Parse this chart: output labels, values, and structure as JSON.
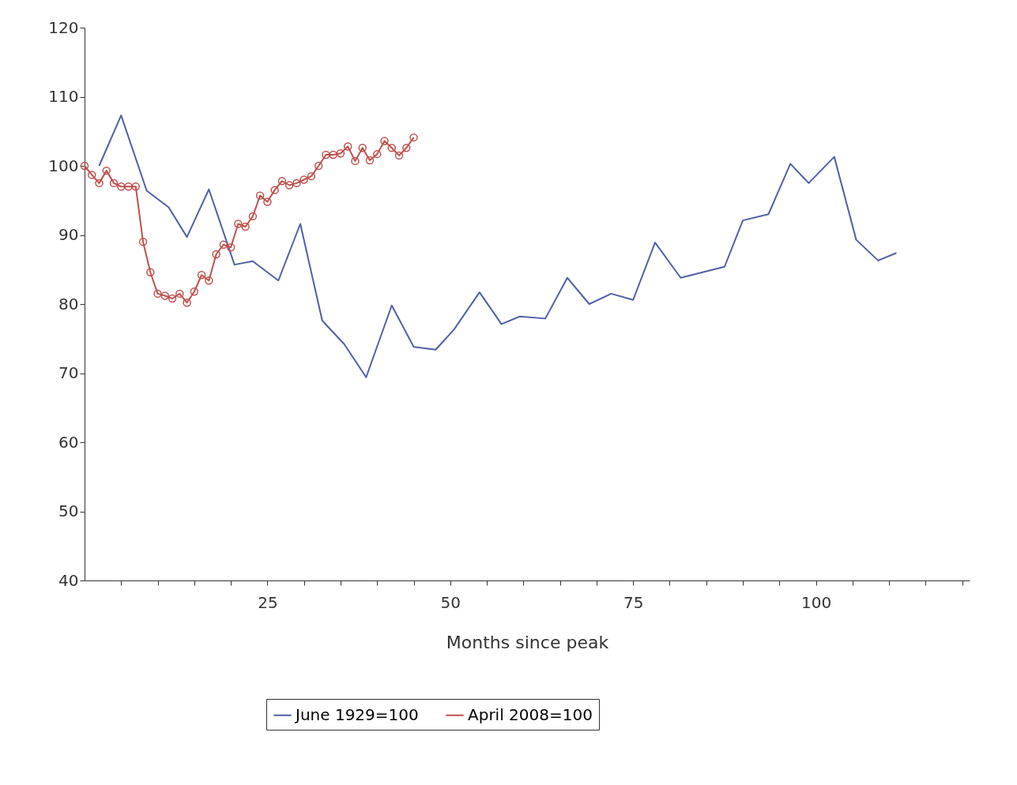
{
  "chart_data": {
    "type": "line",
    "xlabel": "Months since peak",
    "xlim": [
      0,
      121
    ],
    "xticks": [
      {
        "value": 5,
        "label": null
      },
      {
        "value": 10,
        "label": null
      },
      {
        "value": 15,
        "label": null
      },
      {
        "value": 20,
        "label": null
      },
      25,
      {
        "value": 30,
        "label": null
      },
      {
        "value": 35,
        "label": null
      },
      {
        "value": 40,
        "label": null
      },
      {
        "value": 45,
        "label": null
      },
      50,
      {
        "value": 55,
        "label": null
      },
      {
        "value": 60,
        "label": null
      },
      {
        "value": 65,
        "label": null
      },
      {
        "value": 70,
        "label": null
      },
      75,
      {
        "value": 80,
        "label": null
      },
      {
        "value": 85,
        "label": null
      },
      {
        "value": 90,
        "label": null
      },
      {
        "value": 95,
        "label": null
      },
      100,
      {
        "value": 105,
        "label": null
      },
      {
        "value": 110,
        "label": null
      },
      {
        "value": 115,
        "label": null
      },
      {
        "value": 120,
        "label": null
      }
    ],
    "ylim": [
      40,
      120
    ],
    "yticks": [
      40,
      50,
      60,
      70,
      80,
      90,
      100,
      110,
      120
    ],
    "grid": false,
    "legend": "bottom",
    "line_style": "solid",
    "series": [
      {
        "name": "June 1929=100",
        "color": "#5060a8",
        "marker": "none",
        "x": [
          2,
          5,
          8.5,
          11.5,
          14,
          17,
          20.5,
          23,
          26.5,
          29.5,
          32.5,
          35.5,
          38.5,
          42,
          45,
          48,
          50.5,
          54,
          57,
          59.5,
          63,
          66,
          69,
          72,
          75,
          78,
          81.5,
          84.5,
          87.5,
          90,
          93.5,
          96.5,
          99,
          102.5,
          105.5,
          108.5,
          111
        ],
        "values": [
          100,
          107.3,
          96.4,
          94,
          89.7,
          96.6,
          85.7,
          86.2,
          83.4,
          91.6,
          77.6,
          74.2,
          69.4,
          79.8,
          73.8,
          73.4,
          76.3,
          81.7,
          77.1,
          78.2,
          77.9,
          83.8,
          80,
          81.5,
          80.6,
          88.9,
          83.8,
          84.6,
          85.4,
          92.1,
          93,
          100.3,
          97.5,
          101.3,
          89.3,
          86.3,
          87.4
        ]
      },
      {
        "name": "April 2008=100",
        "color": "#c0504d",
        "marker": "circle",
        "x": [
          0,
          1,
          2,
          3,
          4,
          5,
          6,
          7,
          8,
          9,
          10,
          11,
          12,
          13,
          14,
          15,
          16,
          17,
          18,
          19,
          20,
          21,
          22,
          23,
          24,
          25,
          26,
          27,
          28,
          29,
          30,
          31,
          32,
          33,
          34,
          35,
          36,
          37,
          38,
          39,
          40,
          41,
          42,
          43,
          44,
          45
        ],
        "values": [
          100,
          98.7,
          97.5,
          99.3,
          97.5,
          97,
          97,
          97,
          89,
          84.6,
          81.5,
          81.2,
          80.8,
          81.5,
          80.2,
          81.8,
          84.2,
          83.4,
          87.2,
          88.6,
          88.2,
          91.6,
          91.2,
          92.7,
          95.7,
          94.8,
          96.5,
          97.8,
          97.2,
          97.5,
          98,
          98.5,
          100,
          101.6,
          101.6,
          101.8,
          102.8,
          100.7,
          102.6,
          100.8,
          101.7,
          103.6,
          102.6,
          101.5,
          102.6,
          104.1
        ]
      }
    ]
  }
}
